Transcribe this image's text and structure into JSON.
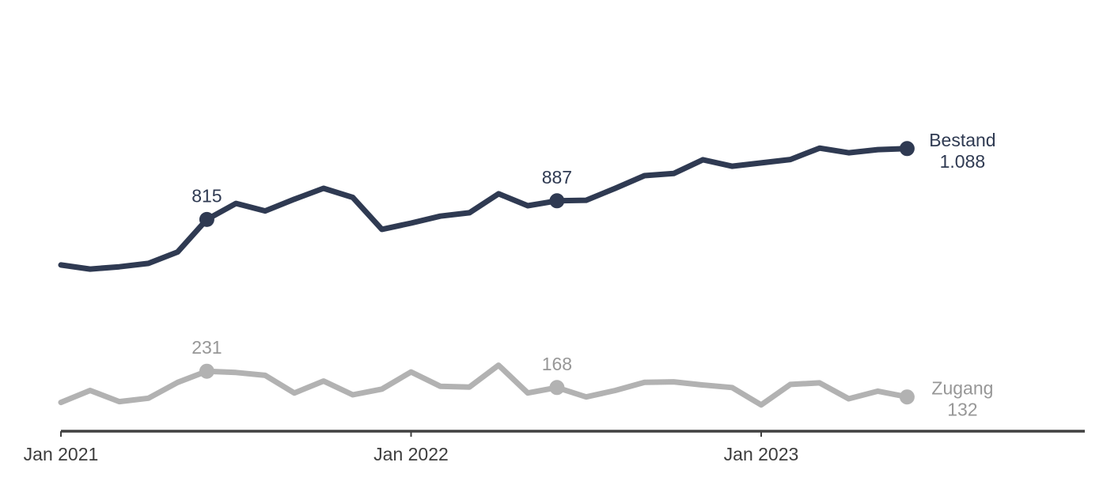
{
  "chart_data": {
    "type": "line",
    "title": "",
    "xlabel": "",
    "ylabel": "",
    "grid": false,
    "legend_position": "end-of-line-labels",
    "x": [
      "Jan 2021",
      "Feb 2021",
      "Mär 2021",
      "Apr 2021",
      "Mai 2021",
      "Jun 2021",
      "Jul 2021",
      "Aug 2021",
      "Sep 2021",
      "Okt 2021",
      "Nov 2021",
      "Dez 2021",
      "Jan 2022",
      "Feb 2022",
      "Mär 2022",
      "Apr 2022",
      "Mai 2022",
      "Jun 2022",
      "Jul 2022",
      "Aug 2022",
      "Sep 2022",
      "Okt 2022",
      "Nov 2022",
      "Dez 2022",
      "Jan 2023",
      "Feb 2023",
      "Mär 2023",
      "Apr 2023",
      "Mai 2023",
      "Jun 2023"
    ],
    "x_ticks": [
      {
        "index": 0,
        "label": "Jan 2021"
      },
      {
        "index": 12,
        "label": "Jan 2022"
      },
      {
        "index": 24,
        "label": "Jan 2023"
      }
    ],
    "ylim": [
      0,
      1200
    ],
    "series": [
      {
        "name": "Zugang",
        "color": "#b2b2b2",
        "label_color": "#979797",
        "values": [
          111,
          157,
          114,
          127,
          188,
          231,
          226,
          215,
          147,
          193,
          140,
          162,
          228,
          173,
          170,
          254,
          147,
          168,
          132,
          157,
          188,
          190,
          178,
          168,
          101,
          180,
          186,
          125,
          154,
          132
        ],
        "marker_indices": [
          5,
          17,
          29
        ],
        "end_label_line1": "Zugang",
        "end_label_line2": "132"
      },
      {
        "name": "Bestand",
        "color": "#2f3a52",
        "label_color": "#2f3a52",
        "values": [
          640,
          624,
          633,
          646,
          690,
          815,
          877,
          848,
          893,
          935,
          900,
          777,
          801,
          828,
          841,
          914,
          868,
          887,
          889,
          935,
          984,
          992,
          1045,
          1020,
          1033,
          1046,
          1090,
          1072,
          1084,
          1088
        ],
        "marker_indices": [
          5,
          17,
          29
        ],
        "end_label_line1": "Bestand",
        "end_label_line2": "1.088"
      }
    ],
    "annotations": [
      {
        "series": "Bestand",
        "index": 5,
        "text": "815"
      },
      {
        "series": "Bestand",
        "index": 17,
        "text": "887"
      },
      {
        "series": "Zugang",
        "index": 5,
        "text": "231"
      },
      {
        "series": "Zugang",
        "index": 17,
        "text": "168"
      }
    ],
    "axis_color": "#404040",
    "tick_label_color": "#3d3d3d"
  }
}
